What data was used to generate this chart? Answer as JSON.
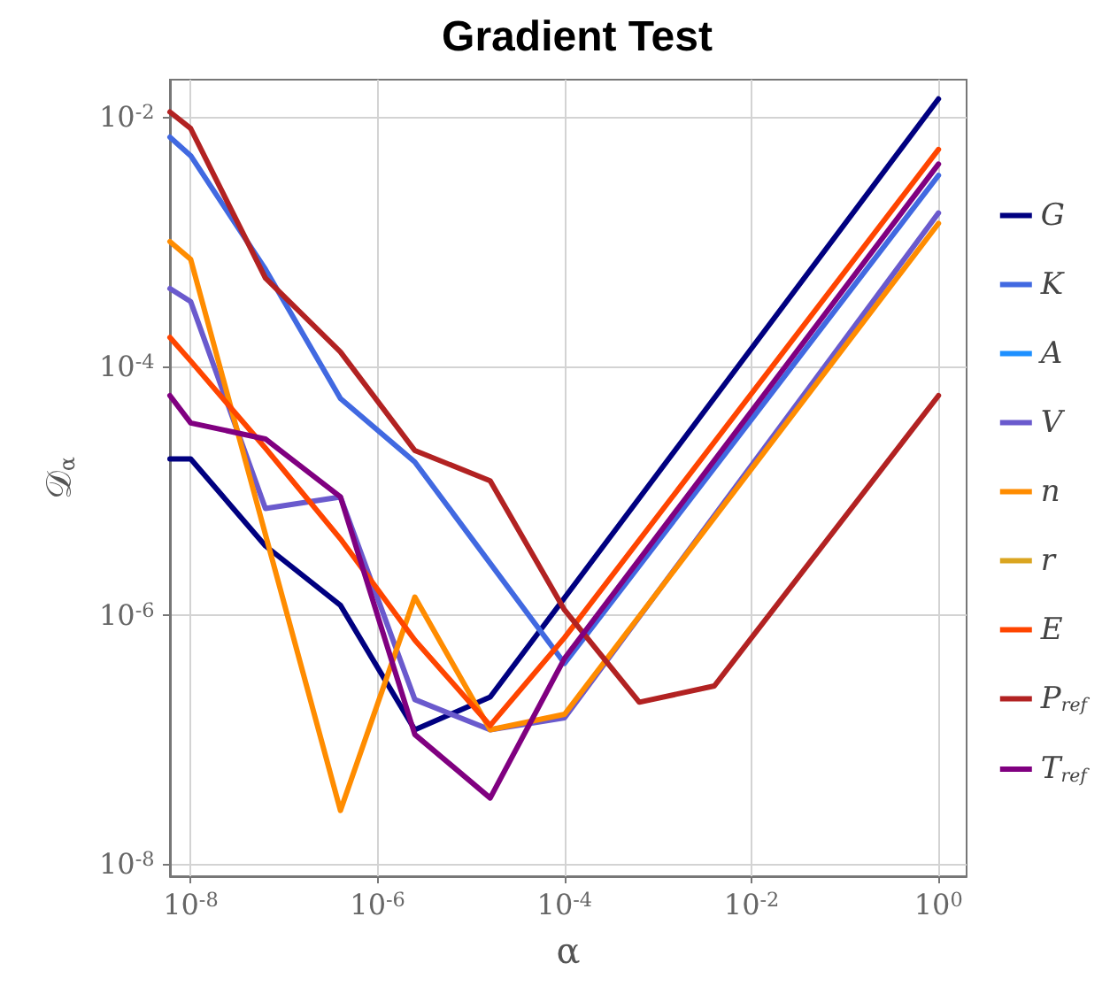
{
  "chart_data": {
    "type": "line",
    "title": "Gradient Test",
    "xlabel": "α",
    "ylabel": "𝒟$_{α}$",
    "log": "xy",
    "grid": true,
    "legend": "right",
    "line_style": "solid",
    "marker": "none",
    "xlim": [
      6e-09,
      2
    ],
    "ylim": [
      8e-09,
      0.02
    ],
    "xticks": [
      {
        "value": 1e-08,
        "label": "10$^{-8}$"
      },
      {
        "value": 1e-06,
        "label": "10$^{-6}$"
      },
      {
        "value": 0.0001,
        "label": "10$^{-4}$"
      },
      {
        "value": 0.01,
        "label": "10$^{-2}$"
      },
      {
        "value": 1,
        "label": "10$^{0}$"
      }
    ],
    "yticks": [
      {
        "value": 1e-08,
        "label": "10$^{-8}$"
      },
      {
        "value": 1e-06,
        "label": "10$^{-6}$"
      },
      {
        "value": 0.0001,
        "label": "10$^{-4}$"
      },
      {
        "value": 0.01,
        "label": "10$^{-2}$"
      }
    ],
    "series": [
      {
        "name": "G",
        "color": "#000080",
        "x": [
          6e-09,
          1e-08,
          6.3e-08,
          4e-07,
          2.5e-06,
          1.6e-05,
          1
        ],
        "values": [
          1.8e-05,
          1.8e-05,
          3.6e-06,
          1.2e-06,
          1.2e-07,
          2.2e-07,
          0.014
        ]
      },
      {
        "name": "K",
        "color": "#4169e1",
        "x": [
          6e-09,
          1e-08,
          6.3e-08,
          4e-07,
          2.5e-06,
          0.0001,
          1
        ],
        "values": [
          0.0069,
          0.0049,
          0.0006,
          5.5e-05,
          1.7e-05,
          4.1e-07,
          0.0034
        ]
      },
      {
        "name": "A",
        "color": "#1e90ff"
      },
      {
        "name": "V",
        "color": "#6a5acd",
        "x": [
          6e-09,
          1e-08,
          6.3e-08,
          4e-07,
          2.5e-06,
          1.6e-05,
          0.0001,
          1
        ],
        "values": [
          0.00042,
          0.00033,
          7.2e-06,
          8.9e-06,
          2.1e-07,
          1.2e-07,
          1.5e-07,
          0.0017
        ]
      },
      {
        "name": "n",
        "color": "#ff8c00",
        "x": [
          6e-09,
          1e-08,
          4e-07,
          2.5e-06,
          1.6e-05,
          0.0001,
          1
        ],
        "values": [
          0.001,
          0.00072,
          2.7e-08,
          1.4e-06,
          1.2e-07,
          1.6e-07,
          0.0014
        ]
      },
      {
        "name": "r",
        "color": "#daa520"
      },
      {
        "name": "E",
        "color": "#ff4500",
        "x": [
          6e-09,
          1e-08,
          6.3e-08,
          4e-07,
          2.5e-06,
          1.6e-05,
          0.0001,
          1
        ],
        "values": [
          0.00017,
          0.00011,
          2.2e-05,
          4.1e-06,
          6.3e-07,
          1.3e-07,
          6.6e-07,
          0.0055
        ]
      },
      {
        "name": "P$_{ref}$",
        "color": "#b22222",
        "x": [
          6e-09,
          1e-08,
          6.3e-08,
          4e-07,
          2.5e-06,
          1.6e-05,
          0.0001,
          0.00063,
          0.004,
          1
        ],
        "values": [
          0.011,
          0.0081,
          0.00051,
          0.00013,
          2.1e-05,
          1.2e-05,
          1.1e-06,
          2e-07,
          2.7e-07,
          5.8e-05
        ]
      },
      {
        "name": "T$_{ref}$",
        "color": "#800080",
        "x": [
          6e-09,
          1e-08,
          6.3e-08,
          4e-07,
          2.5e-06,
          1.6e-05,
          0.0001,
          1
        ],
        "values": [
          5.8e-05,
          3.5e-05,
          2.6e-05,
          8.9e-06,
          1.1e-07,
          3.4e-08,
          4.5e-07,
          0.0042
        ]
      }
    ]
  }
}
